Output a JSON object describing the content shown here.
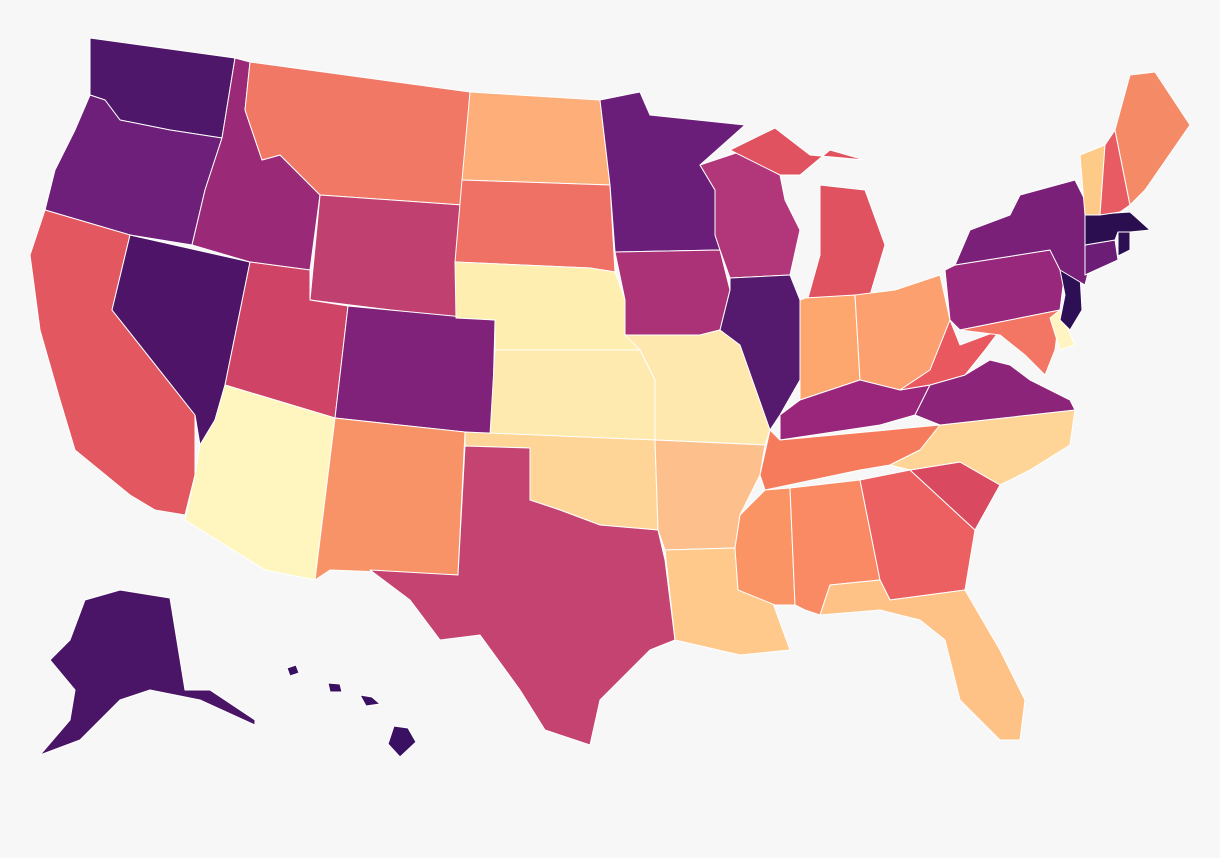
{
  "map": {
    "background": "#f7f7f7",
    "border_color": "#ffffff",
    "regions": [
      {
        "color": "#4f1769"
      },
      {
        "color": "#6d1f7a"
      },
      {
        "color": "#e35760"
      },
      {
        "color": "#4d1467"
      },
      {
        "color": "#9a2a78"
      },
      {
        "color": "#f07865"
      },
      {
        "color": "#c0406f"
      },
      {
        "color": "#cf4466"
      },
      {
        "color": "#fff6bf"
      },
      {
        "color": "#80217a"
      },
      {
        "color": "#f89368"
      },
      {
        "color": "#fdae79"
      },
      {
        "color": "#ef7166"
      },
      {
        "color": "#feeeb0"
      },
      {
        "color": "#feeaae"
      },
      {
        "color": "#fed596"
      },
      {
        "color": "#c54370"
      },
      {
        "color": "#6b1e79"
      },
      {
        "color": "#ac3278"
      },
      {
        "color": "#fee8ae"
      },
      {
        "color": "#fdc08d"
      },
      {
        "color": "#fec98a"
      },
      {
        "color": "#b2367a"
      },
      {
        "color": "#551a6e"
      },
      {
        "color": "#e0525f"
      },
      {
        "color": "#fda66e"
      },
      {
        "color": "#fda06f"
      },
      {
        "color": "#99267b"
      },
      {
        "color": "#f67b5d"
      },
      {
        "color": "#fa9464"
      },
      {
        "color": "#f98a63"
      },
      {
        "color": "#ec6061"
      },
      {
        "color": "#fec287"
      },
      {
        "color": "#d94a61"
      },
      {
        "color": "#fed597"
      },
      {
        "color": "#8c2479"
      },
      {
        "color": "#e9585e"
      },
      {
        "color": "#98287b"
      },
      {
        "color": "#f27663"
      },
      {
        "color": "#fff4c2"
      },
      {
        "color": "#2c0f55"
      },
      {
        "color": "#7a2079"
      },
      {
        "color": "#6c1d76"
      },
      {
        "color": "#2c0f53"
      },
      {
        "color": "#2a0e50"
      },
      {
        "color": "#feca88"
      },
      {
        "color": "#e85b63"
      },
      {
        "color": "#f48a66"
      },
      {
        "color": "#4b1567"
      },
      {
        "color": "#3a1162"
      }
    ]
  }
}
